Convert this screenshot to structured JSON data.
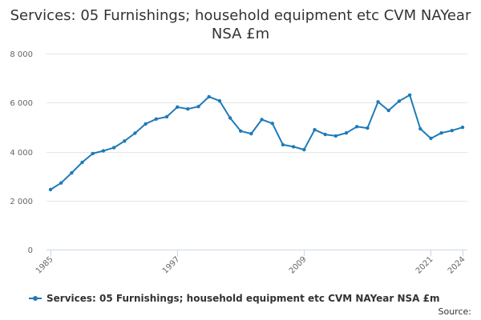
{
  "page": {
    "title": "Services: 05 Furnishings; household equipment etc CVM NAYear NSA £m",
    "source": "Source:"
  },
  "legend": {
    "label": "Services: 05 Furnishings; household equipment etc CVM NAYear NSA £m"
  },
  "colors": {
    "series": "#1f7ab8",
    "grid": "#e6e6e6",
    "axis": "#ccd6eb"
  },
  "chart_data": {
    "type": "line",
    "title": "Services: 05 Furnishings; household equipment etc CVM NAYear NSA £m",
    "xlabel": "",
    "ylabel": "",
    "xlim": [
      1985,
      2024
    ],
    "ylim": [
      0,
      8000
    ],
    "x_tick_labels": [
      "1985",
      "1997",
      "2009",
      "2021",
      "2024"
    ],
    "y_tick_labels": [
      "0",
      "2 000",
      "4 000",
      "6 000",
      "8 000"
    ],
    "y_tick_values": [
      0,
      2000,
      4000,
      6000,
      8000
    ],
    "grid": true,
    "legend_position": "bottom",
    "x": [
      1985,
      1986,
      1987,
      1988,
      1989,
      1990,
      1991,
      1992,
      1993,
      1994,
      1995,
      1996,
      1997,
      1998,
      1999,
      2000,
      2001,
      2002,
      2003,
      2004,
      2005,
      2006,
      2007,
      2008,
      2009,
      2010,
      2011,
      2012,
      2013,
      2014,
      2015,
      2016,
      2017,
      2018,
      2019,
      2020,
      2021,
      2022,
      2023,
      2024
    ],
    "series": [
      {
        "name": "Services: 05 Furnishings; household equipment etc CVM NAYear NSA £m",
        "values": [
          2450,
          2720,
          3130,
          3560,
          3920,
          4030,
          4160,
          4430,
          4750,
          5130,
          5330,
          5420,
          5820,
          5740,
          5840,
          6240,
          6070,
          5370,
          4840,
          4730,
          5310,
          5150,
          4280,
          4200,
          4080,
          4890,
          4700,
          4640,
          4760,
          5020,
          4960,
          6030,
          5680,
          6060,
          6310,
          4930,
          4540,
          4760,
          4860,
          4990
        ]
      }
    ]
  }
}
